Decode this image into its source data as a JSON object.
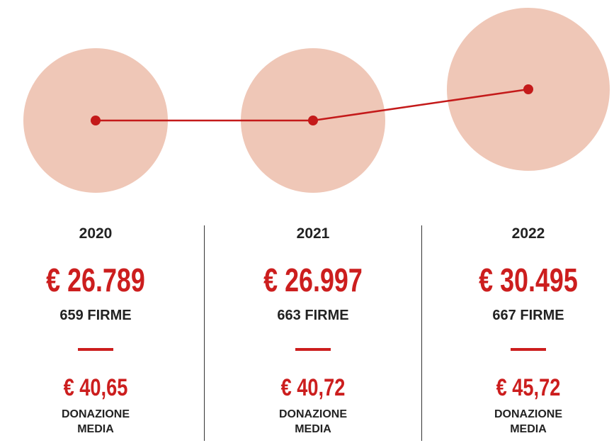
{
  "columns": [
    {
      "year": "2020",
      "amount": "€ 26.789",
      "signatures": "659 FIRME",
      "average": "€ 40,65",
      "average_label": "DONAZIONE MEDIA"
    },
    {
      "year": "2021",
      "amount": "€ 26.997",
      "signatures": "663 FIRME",
      "average": "€ 40,72",
      "average_label": "DONAZIONE MEDIA"
    },
    {
      "year": "2022",
      "amount": "€ 30.495",
      "signatures": "667 FIRME",
      "average": "€ 45,72",
      "average_label": "DONAZIONE MEDIA"
    }
  ]
}
